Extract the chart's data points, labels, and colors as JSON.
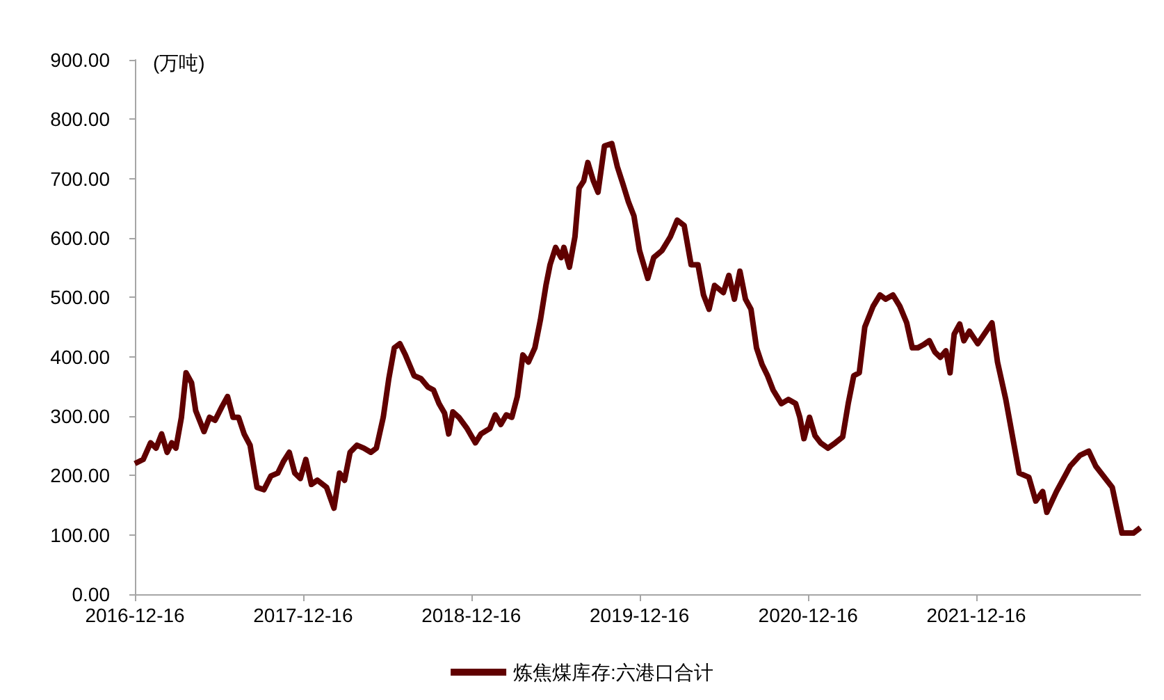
{
  "chart_data": {
    "type": "line",
    "ylabel": "(万吨)",
    "legend": "bottom",
    "grid": false,
    "marker": "none",
    "line_style": "solid",
    "xlim": [
      "2016-12-16",
      "2022-12-07"
    ],
    "xticks": [
      "2016-12-16",
      "2017-12-16",
      "2018-12-16",
      "2019-12-16",
      "2020-12-16",
      "2021-12-16"
    ],
    "ylim": [
      0,
      900
    ],
    "yticks": [
      {
        "value": 0,
        "label": "0.00"
      },
      {
        "value": 100,
        "label": "100.00"
      },
      {
        "value": 200,
        "label": "200.00"
      },
      {
        "value": 300,
        "label": "300.00"
      },
      {
        "value": 400,
        "label": "400.00"
      },
      {
        "value": 500,
        "label": "500.00"
      },
      {
        "value": 600,
        "label": "600.00"
      },
      {
        "value": 700,
        "label": "700.00"
      },
      {
        "value": 800,
        "label": "800.00"
      },
      {
        "value": 900,
        "label": "900.00"
      }
    ],
    "x": [
      "2016-12-16",
      "2017-01-03",
      "2017-01-19",
      "2017-01-31",
      "2017-02-12",
      "2017-02-24",
      "2017-03-06",
      "2017-03-15",
      "2017-03-27",
      "2017-04-06",
      "2017-04-18",
      "2017-04-27",
      "2017-05-15",
      "2017-05-27",
      "2017-06-08",
      "2017-06-23",
      "2017-07-05",
      "2017-07-17",
      "2017-07-29",
      "2017-08-10",
      "2017-08-23",
      "2017-09-07",
      "2017-09-22",
      "2017-10-07",
      "2017-10-22",
      "2017-11-03",
      "2017-11-16",
      "2017-11-28",
      "2017-12-10",
      "2017-12-22",
      "2018-01-03",
      "2018-01-16",
      "2018-02-05",
      "2018-02-21",
      "2018-03-05",
      "2018-03-16",
      "2018-03-28",
      "2018-04-12",
      "2018-04-27",
      "2018-05-12",
      "2018-05-24",
      "2018-06-08",
      "2018-06-20",
      "2018-07-02",
      "2018-07-14",
      "2018-07-26",
      "2018-08-14",
      "2018-08-29",
      "2018-09-13",
      "2018-09-25",
      "2018-10-07",
      "2018-10-19",
      "2018-10-28",
      "2018-11-06",
      "2018-11-19",
      "2018-12-07",
      "2018-12-25",
      "2019-01-06",
      "2019-01-25",
      "2019-02-06",
      "2019-02-18",
      "2019-03-02",
      "2019-03-14",
      "2019-03-26",
      "2019-04-07",
      "2019-04-19",
      "2019-05-03",
      "2019-05-15",
      "2019-05-27",
      "2019-06-05",
      "2019-06-17",
      "2019-06-29",
      "2019-07-05",
      "2019-07-17",
      "2019-07-29",
      "2019-08-07",
      "2019-08-17",
      "2019-08-26",
      "2019-09-07",
      "2019-09-17",
      "2019-10-01",
      "2019-10-17",
      "2019-10-29",
      "2019-11-10",
      "2019-11-22",
      "2019-12-04",
      "2019-12-16",
      "2020-01-03",
      "2020-01-16",
      "2020-02-03",
      "2020-02-21",
      "2020-03-07",
      "2020-03-22",
      "2020-04-06",
      "2020-04-21",
      "2020-05-03",
      "2020-05-15",
      "2020-05-27",
      "2020-06-15",
      "2020-06-27",
      "2020-07-09",
      "2020-07-21",
      "2020-08-02",
      "2020-08-14",
      "2020-08-26",
      "2020-09-07",
      "2020-09-19",
      "2020-10-01",
      "2020-10-19",
      "2020-11-03",
      "2020-11-19",
      "2020-11-28",
      "2020-12-07",
      "2020-12-19",
      "2020-12-31",
      "2021-01-12",
      "2021-01-28",
      "2021-02-13",
      "2021-03-01",
      "2021-03-13",
      "2021-03-25",
      "2021-04-06",
      "2021-04-18",
      "2021-05-06",
      "2021-05-21",
      "2021-06-02",
      "2021-06-18",
      "2021-07-03",
      "2021-07-18",
      "2021-07-30",
      "2021-08-11",
      "2021-08-23",
      "2021-09-05",
      "2021-09-17",
      "2021-09-29",
      "2021-10-11",
      "2021-10-20",
      "2021-10-29",
      "2021-11-10",
      "2021-11-19",
      "2021-12-01",
      "2021-12-19",
      "2022-01-19",
      "2022-01-31",
      "2022-02-18",
      "2022-03-19",
      "2022-04-09",
      "2022-04-24",
      "2022-05-09",
      "2022-05-18",
      "2022-06-08",
      "2022-07-08",
      "2022-07-29",
      "2022-08-17",
      "2022-09-01",
      "2022-10-07",
      "2022-10-28",
      "2022-11-22",
      "2022-12-07"
    ],
    "series": [
      {
        "name": "炼焦煤库存:六港口合计",
        "color": "#600000",
        "values": [
          220,
          227,
          255,
          246,
          270,
          239,
          255,
          246,
          298,
          373,
          356,
          309,
          274,
          298,
          293,
          316,
          333,
          298,
          298,
          270,
          251,
          180,
          176,
          199,
          204,
          223,
          239,
          204,
          195,
          227,
          185,
          192,
          180,
          145,
          204,
          192,
          239,
          251,
          246,
          239,
          246,
          298,
          363,
          415,
          422,
          403,
          368,
          363,
          349,
          344,
          321,
          305,
          270,
          307,
          298,
          279,
          255,
          270,
          279,
          302,
          286,
          302,
          298,
          333,
          403,
          391,
          415,
          462,
          520,
          555,
          584,
          567,
          584,
          551,
          602,
          684,
          696,
          727,
          696,
          677,
          755,
          759,
          720,
          691,
          661,
          637,
          579,
          532,
          567,
          579,
          602,
          630,
          621,
          555,
          555,
          504,
          480,
          520,
          508,
          537,
          497,
          544,
          497,
          480,
          415,
          387,
          368,
          344,
          321,
          328,
          321,
          298,
          262,
          298,
          267,
          255,
          246,
          255,
          265,
          321,
          368,
          373,
          450,
          485,
          504,
          497,
          504,
          485,
          457,
          415,
          415,
          420,
          427,
          408,
          399,
          410,
          373,
          438,
          455,
          427,
          443,
          422,
          457,
          391,
          328,
          204,
          197,
          157,
          173,
          138,
          173,
          216,
          234,
          241,
          216,
          180,
          103,
          103,
          112
        ]
      }
    ]
  }
}
